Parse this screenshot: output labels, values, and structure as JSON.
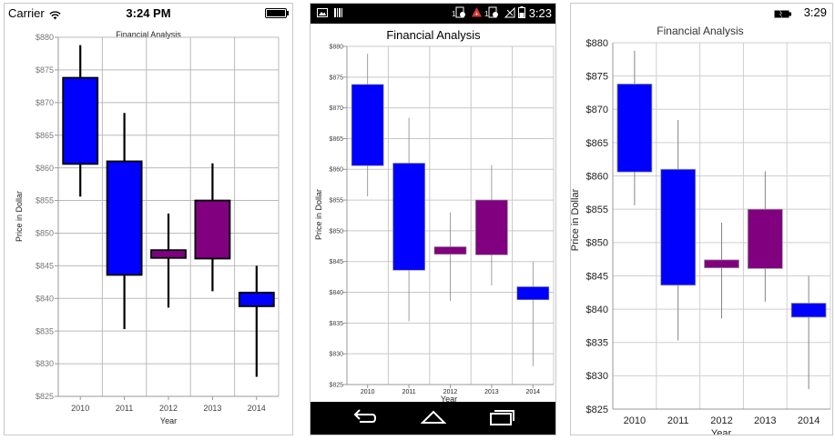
{
  "ios": {
    "carrier": "Carrier",
    "time": "3:24 PM"
  },
  "android": {
    "time": "3:23",
    "notif_count_1": "1",
    "notif_count_2": "1"
  },
  "windows": {
    "time": "3:29"
  },
  "chart_data": {
    "type": "candlestick",
    "title": "Financial Analysis",
    "xlabel": "Year",
    "ylabel": "Price in Dollar",
    "ylim": [
      825,
      880
    ],
    "y_ticks": [
      "$825",
      "$830",
      "$835",
      "$840",
      "$845",
      "$850",
      "$855",
      "$860",
      "$865",
      "$870",
      "$875",
      "$880"
    ],
    "y_tick_values": [
      825,
      830,
      835,
      840,
      845,
      850,
      855,
      860,
      865,
      870,
      875,
      880
    ],
    "x_ticks": [
      "2010",
      "2011",
      "2012",
      "2013",
      "2014"
    ],
    "grid": true,
    "candles": [
      {
        "year": "2010",
        "open": 873.8,
        "high": 878.8,
        "low": 855.6,
        "close": 860.6,
        "color": "#0000ff"
      },
      {
        "year": "2011",
        "open": 861.0,
        "high": 868.4,
        "low": 835.3,
        "close": 843.6,
        "color": "#0000ff"
      },
      {
        "year": "2012",
        "open": 846.2,
        "high": 853.0,
        "low": 838.6,
        "close": 847.4,
        "color": "#800080"
      },
      {
        "year": "2013",
        "open": 846.1,
        "high": 860.7,
        "low": 841.1,
        "close": 855.0,
        "color": "#800080"
      },
      {
        "year": "2014",
        "open": 840.9,
        "high": 845.0,
        "low": 828.0,
        "close": 838.8,
        "color": "#0000ff"
      }
    ]
  }
}
